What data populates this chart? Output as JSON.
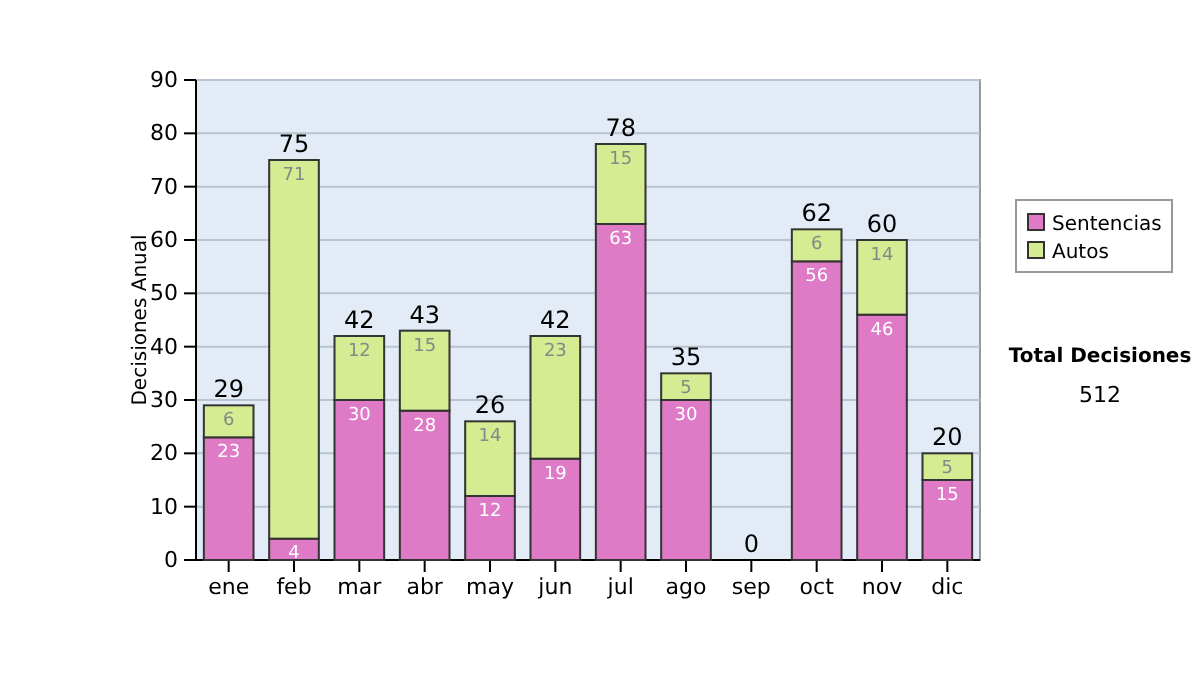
{
  "chart_data": {
    "type": "bar",
    "stacked": true,
    "ylabel": "Decisiones Anual",
    "categories": [
      "ene",
      "feb",
      "mar",
      "abr",
      "may",
      "jun",
      "jul",
      "ago",
      "sep",
      "oct",
      "nov",
      "dic"
    ],
    "series": [
      {
        "name": "Sentencias",
        "color": "#de7ac6",
        "values": [
          23,
          4,
          30,
          28,
          12,
          19,
          63,
          30,
          0,
          56,
          46,
          15
        ],
        "value_labels": [
          "23",
          "4",
          "30",
          "28",
          "12",
          "19",
          "63",
          "30",
          null,
          "56",
          "46",
          "15"
        ]
      },
      {
        "name": "Autos",
        "color": "#d5ec92",
        "values": [
          6,
          71,
          12,
          15,
          14,
          23,
          15,
          5,
          0,
          6,
          14,
          5
        ],
        "value_labels": [
          "6",
          "71",
          "12",
          "15",
          "14",
          "23",
          "15",
          "5",
          null,
          "6",
          "14",
          "5"
        ]
      }
    ],
    "totals": [
      "29",
      "75",
      "42",
      "43",
      "26",
      "42",
      "78",
      "35",
      "0",
      "62",
      "60",
      "20"
    ],
    "ylim": [
      0,
      90
    ],
    "yticks": [
      0,
      10,
      20,
      30,
      40,
      50,
      60,
      70,
      80,
      90
    ],
    "grid": "y",
    "legend": "right",
    "annotations": [
      "Total Decisiones",
      "512"
    ]
  }
}
